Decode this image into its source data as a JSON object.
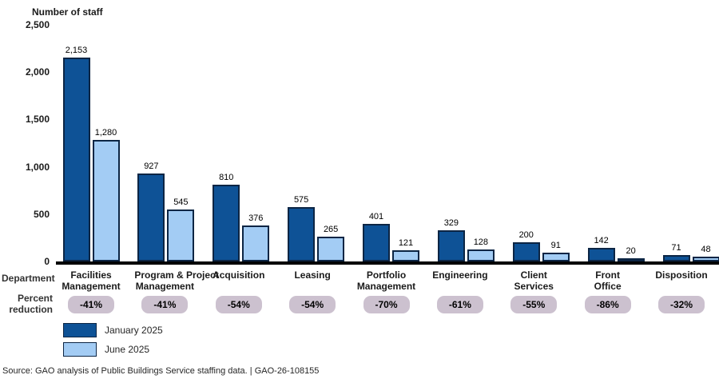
{
  "title": "Number of staff",
  "row_labels": {
    "department": "Department",
    "percent_reduction": "Percent\nreduction"
  },
  "legend": {
    "items": [
      {
        "label": "January 2025",
        "color": "#0E5296"
      },
      {
        "label": "June 2025",
        "color": "#A3CCF4"
      }
    ]
  },
  "source": "Source: GAO analysis of Public Buildings Service staffing data. | GAO-26-108155",
  "chart_data": {
    "type": "bar",
    "title": "Number of staff",
    "xlabel": "Department",
    "ylabel": "Number of staff",
    "ylim": [
      0,
      2500
    ],
    "grid": false,
    "legend_position": "bottom-left",
    "yticks": [
      {
        "label": "0",
        "value": 0
      },
      {
        "label": "500",
        "value": 500
      },
      {
        "label": "1,000",
        "value": 1000
      },
      {
        "label": "1,500",
        "value": 1500
      },
      {
        "label": "2,000",
        "value": 2000
      },
      {
        "label": "2,500",
        "value": 2500
      }
    ],
    "categories": [
      "Facilities\nManagement",
      "Program & Project\nManagement",
      "Acquisition",
      "Leasing",
      "Portfolio\nManagement",
      "Engineering",
      "Client\nServices",
      "Front\nOffice",
      "Disposition"
    ],
    "series": [
      {
        "name": "January 2025",
        "color": "#0E5296",
        "values": [
          2153,
          927,
          810,
          575,
          401,
          329,
          200,
          142,
          71
        ],
        "labels": [
          "2,153",
          "927",
          "810",
          "575",
          "401",
          "329",
          "200",
          "142",
          "71"
        ]
      },
      {
        "name": "June 2025",
        "color": "#A3CCF4",
        "values": [
          1280,
          545,
          376,
          265,
          121,
          128,
          91,
          20,
          48
        ],
        "labels": [
          "1,280",
          "545",
          "376",
          "265",
          "121",
          "128",
          "91",
          "20",
          "48"
        ]
      }
    ],
    "percent_reduction": [
      "-41%",
      "-41%",
      "-54%",
      "-54%",
      "-70%",
      "-61%",
      "-55%",
      "-86%",
      "-32%"
    ]
  }
}
